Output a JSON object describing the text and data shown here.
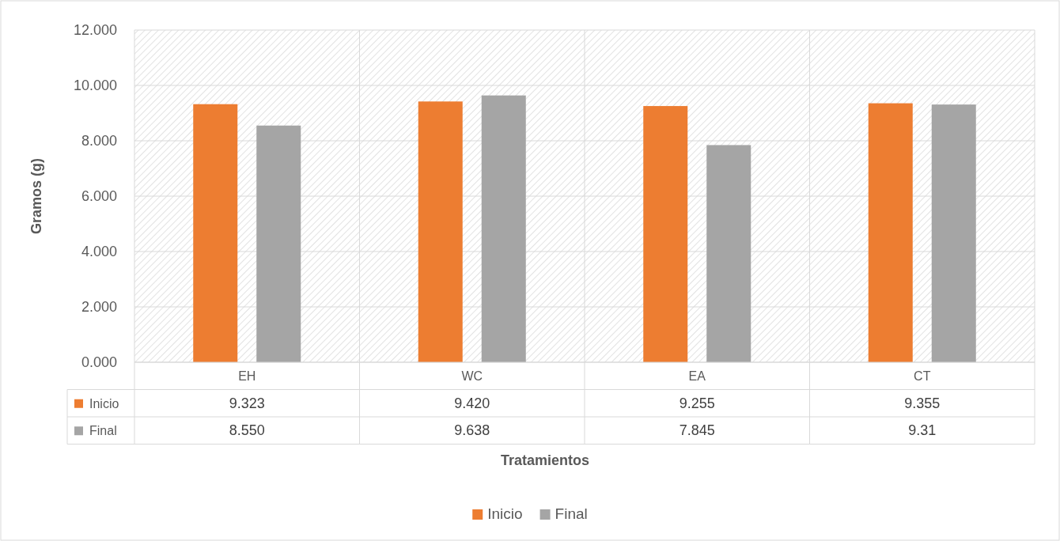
{
  "chart_data": {
    "type": "bar",
    "xlabel": "Tratamientos",
    "ylabel": "Gramos (g)",
    "categories": [
      "EH",
      "WC",
      "EA",
      "CT"
    ],
    "series": [
      {
        "name": "Inicio",
        "color": "#ed7d31",
        "values": [
          9.323,
          9.42,
          9.255,
          9.355
        ],
        "value_labels": [
          "9.323",
          "9.420",
          "9.255",
          "9.355"
        ]
      },
      {
        "name": "Final",
        "color": "#a5a5a5",
        "values": [
          8.55,
          9.638,
          7.845,
          9.31
        ],
        "value_labels": [
          "8.550",
          "9.638",
          "7.845",
          "9.31"
        ]
      }
    ],
    "ylim": [
      0,
      12
    ],
    "yticks": [
      {
        "value": 0,
        "label": "0.000"
      },
      {
        "value": 2,
        "label": "2.000"
      },
      {
        "value": 4,
        "label": "4.000"
      },
      {
        "value": 6,
        "label": "6.000"
      },
      {
        "value": 8,
        "label": "8.000"
      },
      {
        "value": 10,
        "label": "10.000"
      },
      {
        "value": 12,
        "label": "12.000"
      }
    ],
    "grid": true,
    "legend": "bottom"
  }
}
